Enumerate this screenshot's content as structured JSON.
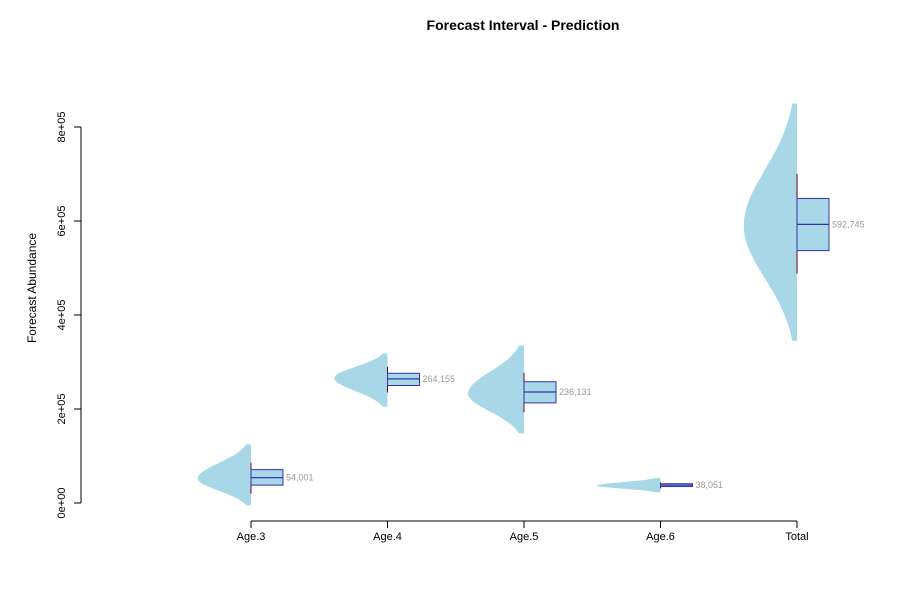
{
  "chart_data": {
    "type": "violin",
    "title": "Forecast Interval - Prediction",
    "xlabel": "",
    "ylabel": "Forecast Abundance",
    "ylim": [
      -5000,
      850000
    ],
    "y_ticks": [
      0,
      200000,
      400000,
      600000,
      800000
    ],
    "y_tick_labels": [
      "0e+00",
      "2e+05",
      "4e+05",
      "6e+05",
      "8e+05"
    ],
    "categories": [
      "Age.3",
      "Age.4",
      "Age.5",
      "Age.6",
      "Total"
    ],
    "groups": [
      {
        "category": "Age.3",
        "median": 54001,
        "label": "54,001",
        "q1": 38000,
        "q3": 71000,
        "whisker_low": 20000,
        "whisker_high": 86000,
        "density_min": -5000,
        "density_max": 125000,
        "density_peak": 52000,
        "density_width": 0.39
      },
      {
        "category": "Age.4",
        "median": 264155,
        "label": "264,155",
        "q1": 250000,
        "q3": 276000,
        "whisker_low": 235000,
        "whisker_high": 290000,
        "density_min": 205000,
        "density_max": 318000,
        "density_peak": 266000,
        "density_width": 0.39
      },
      {
        "category": "Age.5",
        "median": 236131,
        "label": "236,131",
        "q1": 213000,
        "q3": 258000,
        "whisker_low": 193000,
        "whisker_high": 277000,
        "density_min": 148000,
        "density_max": 335000,
        "density_peak": 233000,
        "density_width": 0.41
      },
      {
        "category": "Age.6",
        "median": 38051,
        "label": "38,051",
        "q1": 35000,
        "q3": 41000,
        "whisker_low": 31000,
        "whisker_high": 44000,
        "density_min": 23000,
        "density_max": 53000,
        "density_peak": 37000,
        "density_width": 0.47
      },
      {
        "category": "Total",
        "median": 592745,
        "label": "592,745",
        "q1": 537000,
        "q3": 648000,
        "whisker_low": 488000,
        "whisker_high": 700000,
        "density_min": 345000,
        "density_max": 850000,
        "density_peak": 590000,
        "density_width": 0.39
      }
    ],
    "colors": {
      "violin": "#a8d8e8",
      "box_fill": "#a8d8e8",
      "box_stroke": "#3333aa",
      "median": "#3333aa",
      "whisker": "#660033",
      "data_label": "#999999"
    },
    "grid": false,
    "legend": "none"
  }
}
